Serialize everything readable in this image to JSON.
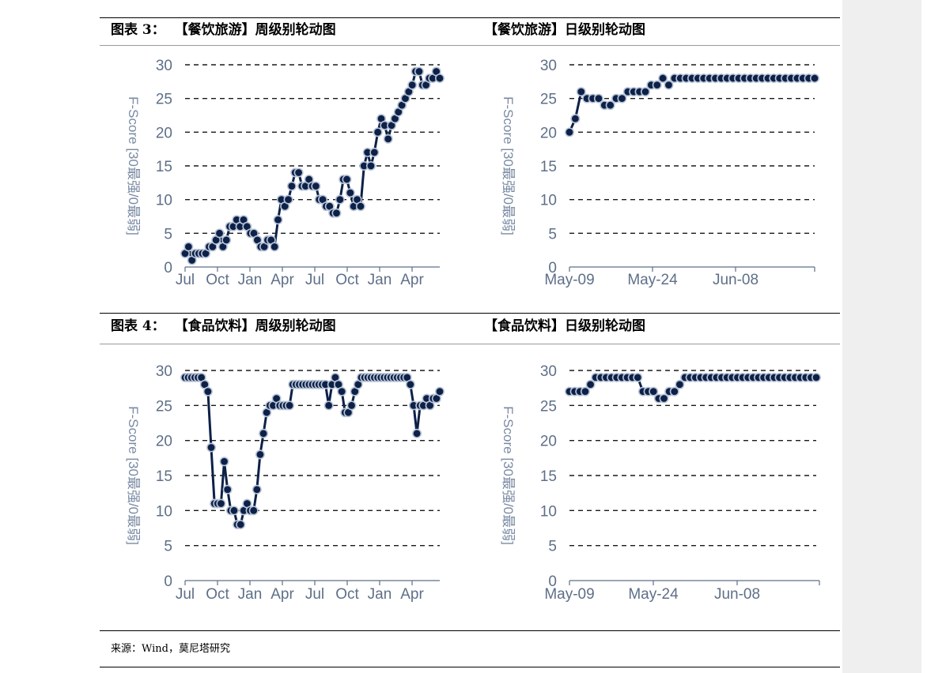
{
  "figures": {
    "fig3_caption": "图表 3：  【餐饮旅游】周级别轮动图",
    "fig3_daily_caption": "【餐饮旅游】日级别轮动图",
    "fig4_caption": "图表 4：  【食品饮料】周级别轮动图",
    "fig4_daily_caption": "【食品饮料】日级别轮动图"
  },
  "source": "来源：Wind，莫尼塔研究",
  "colors": {
    "line": "#0d2148",
    "marker": "#0d2148",
    "marker_light": "#b9c4d6",
    "grid": "#1a1a1a",
    "axis_text": "#5e6f88"
  },
  "chart_data": [
    {
      "type": "line",
      "id": "c1",
      "title": "",
      "ylabel": "F-Score [30最强/0最弱]",
      "ylim": [
        0,
        30
      ],
      "yticks": [
        "0",
        "5",
        "10",
        "15",
        "20",
        "25",
        "30"
      ],
      "xtick_labels": [
        "Jul",
        "Oct",
        "Jan",
        "Apr",
        "Jul",
        "Oct",
        "Jan",
        "Apr"
      ],
      "grid": "horizontal dashed",
      "series": [
        {
          "values": [
            2,
            3,
            1,
            2,
            2,
            2,
            2,
            3,
            3,
            4,
            5,
            3,
            4,
            6,
            6,
            7,
            6,
            7,
            6,
            5,
            5,
            4,
            3,
            3,
            4,
            4,
            3,
            7,
            10,
            9,
            10,
            12,
            14,
            14,
            12,
            12,
            13,
            12,
            12,
            10,
            10,
            9,
            9,
            8,
            8,
            10,
            13,
            13,
            11,
            9,
            10,
            9,
            15,
            17,
            15,
            17,
            20,
            22,
            21,
            19,
            21,
            22,
            23,
            24,
            25,
            26,
            27,
            29,
            29,
            27,
            27,
            28,
            28,
            29,
            28
          ]
        }
      ]
    },
    {
      "type": "line",
      "id": "c2",
      "title": "",
      "ylabel": "F-Score [30最强/0最弱]",
      "ylim": [
        0,
        30
      ],
      "yticks": [
        "0",
        "5",
        "10",
        "15",
        "20",
        "25",
        "30"
      ],
      "xtick_labels": [
        "May-09",
        "May-24",
        "Jun-08"
      ],
      "grid": "horizontal dashed",
      "series": [
        {
          "values": [
            20,
            22,
            26,
            25,
            25,
            25,
            24,
            24,
            25,
            25,
            26,
            26,
            26,
            26,
            27,
            27,
            28,
            27,
            28,
            28,
            28,
            28,
            28,
            28,
            28,
            28,
            28,
            28,
            28,
            28,
            28,
            28,
            28,
            28,
            28,
            28,
            28,
            28,
            28,
            28,
            28,
            28,
            28
          ]
        }
      ]
    },
    {
      "type": "line",
      "id": "c3",
      "title": "",
      "ylabel": "F-Score [30最强/0最弱]",
      "ylim": [
        0,
        30
      ],
      "yticks": [
        "0",
        "5",
        "10",
        "15",
        "20",
        "25",
        "30"
      ],
      "xtick_labels": [
        "Jul",
        "Oct",
        "Jan",
        "Apr",
        "Jul",
        "Oct",
        "Jan",
        "Apr"
      ],
      "grid": "horizontal dashed",
      "series": [
        {
          "values": [
            29,
            29,
            29,
            29,
            29,
            29,
            28,
            27,
            19,
            11,
            11,
            11,
            17,
            13,
            10,
            10,
            8,
            8,
            10,
            11,
            10,
            10,
            13,
            18,
            21,
            24,
            25,
            25,
            26,
            25,
            25,
            25,
            25,
            28,
            28,
            28,
            28,
            28,
            28,
            28,
            28,
            28,
            28,
            28,
            25,
            28,
            29,
            28,
            27,
            24,
            24,
            25,
            27,
            28,
            29,
            29,
            29,
            29,
            29,
            29,
            29,
            29,
            29,
            29,
            29,
            29,
            29,
            29,
            29,
            28,
            25,
            21,
            25,
            25,
            26,
            25,
            26,
            26,
            27
          ]
        }
      ]
    },
    {
      "type": "line",
      "id": "c4",
      "title": "",
      "ylabel": "F-Score [30最强/0最弱]",
      "ylim": [
        0,
        30
      ],
      "yticks": [
        "0",
        "5",
        "10",
        "15",
        "20",
        "25",
        "30"
      ],
      "xtick_labels": [
        "May-09",
        "May-24",
        "Jun-08"
      ],
      "grid": "horizontal dashed",
      "series": [
        {
          "values": [
            27,
            27,
            27,
            27,
            28,
            29,
            29,
            29,
            29,
            29,
            29,
            29,
            29,
            29,
            27,
            27,
            27,
            26,
            26,
            27,
            27,
            28,
            29,
            29,
            29,
            29,
            29,
            29,
            29,
            29,
            29,
            29,
            29,
            29,
            29,
            29,
            29,
            29,
            29,
            29,
            29,
            29,
            29,
            29,
            29,
            29,
            29,
            29
          ]
        }
      ]
    }
  ]
}
